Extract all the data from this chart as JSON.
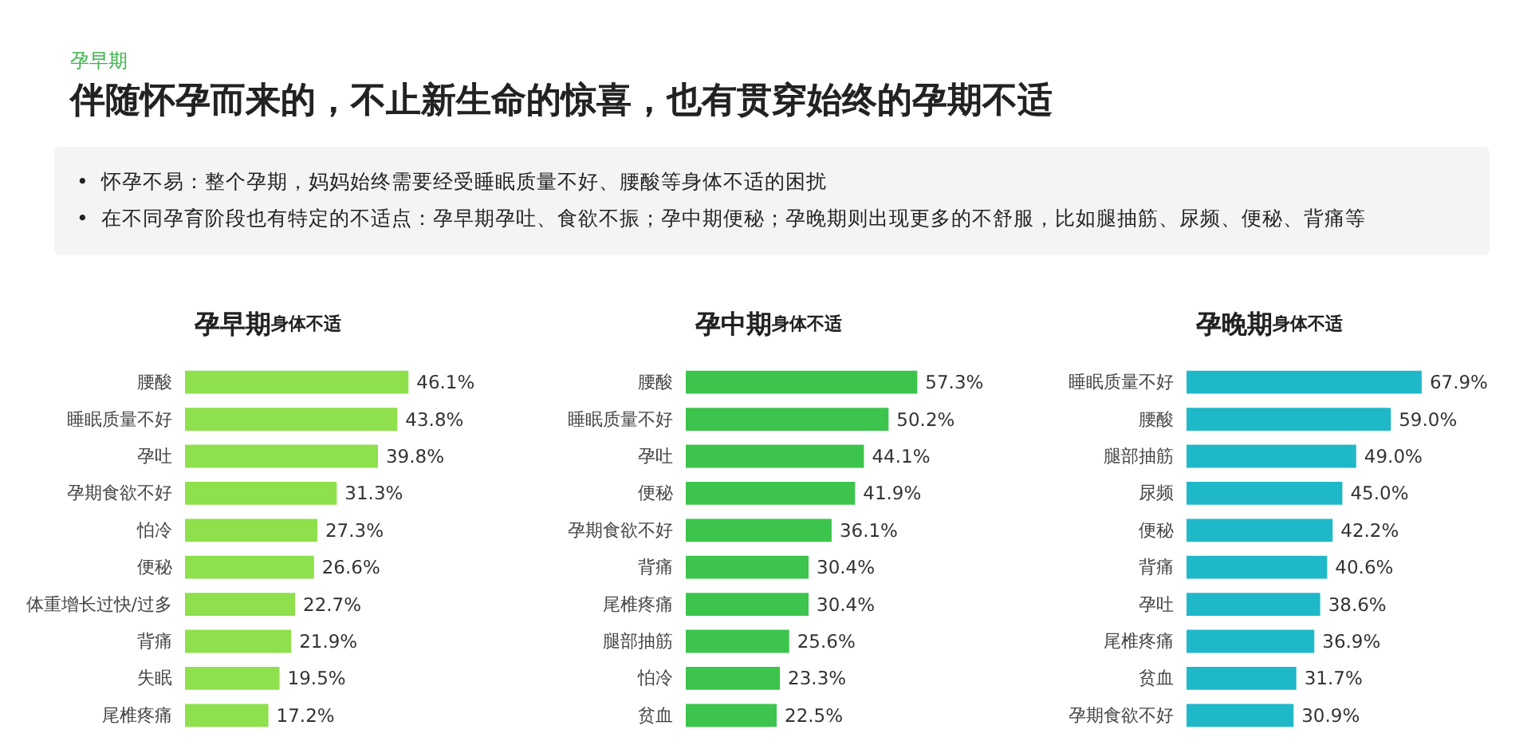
{
  "chart_data": [
    {
      "type": "other",
      "title": "伴随怀孕而来的，不止新生命的惊喜，也有贯穿始终的孕期不适",
      "subtitle": "孕早期",
      "annotations": [
        "•  怀孕不易：整个孕期，妈妈始终需要经受睡眠质量不好、腰酸等身体不适的困扰",
        "•  在不同孕育阶段也有特定的不适点：孕早期孕吐、食欲不振；孕中期便秘；孕晚期则出现更多的不舒服，比如腿抽筋、尿频、便秘、背痛等"
      ]
    },
    {
      "type": "bar",
      "orientation": "horizontal",
      "title": "孕早期",
      "subtitle": "身体不适",
      "categories": [
        "腰酸",
        "睡眠质量不好",
        "孕吐",
        "孕期食欲不好",
        "怕冷",
        "便秘",
        "体重增长过快/过多",
        "背痛",
        "失眠",
        "尾椎疼痛"
      ],
      "series": [
        {
          "color": "#8ee04c",
          "values": [
            46.1,
            43.8,
            39.8,
            31.3,
            27.3,
            26.6,
            22.7,
            21.9,
            19.5,
            17.2
          ],
          "value_labels": [
            "46.1%",
            "43.8%",
            "39.8%",
            "31.3%",
            "27.3%",
            "26.6%",
            "22.7%",
            "21.9%",
            "19.5%",
            "17.2%"
          ]
        }
      ]
    },
    {
      "type": "bar",
      "orientation": "horizontal",
      "title": "孕中期",
      "subtitle": "身体不适",
      "categories": [
        "腰酸",
        "睡眠质量不好",
        "孕吐",
        "便秘",
        "孕期食欲不好",
        "背痛",
        "尾椎疼痛",
        "腿部抽筋",
        "怕冷",
        "贫血"
      ],
      "series": [
        {
          "color": "#3cc44c",
          "values": [
            57.3,
            50.2,
            44.1,
            41.9,
            36.1,
            30.4,
            30.4,
            25.6,
            23.3,
            22.5
          ],
          "value_labels": [
            "57.3%",
            "50.2%",
            "44.1%",
            "41.9%",
            "36.1%",
            "30.4%",
            "30.4%",
            "25.6%",
            "23.3%",
            "22.5%"
          ]
        }
      ]
    },
    {
      "type": "bar",
      "orientation": "horizontal",
      "title": "孕晚期",
      "subtitle": "身体不适",
      "categories": [
        "睡眠质量不好",
        "腰酸",
        "腿部抽筋",
        "尿频",
        "便秘",
        "背痛",
        "孕吐",
        "尾椎疼痛",
        "贫血",
        "孕期食欲不好"
      ],
      "series": [
        {
          "color": "#1fb8c8",
          "values": [
            67.9,
            59.0,
            49.0,
            45.0,
            42.2,
            40.6,
            38.6,
            36.9,
            31.7,
            30.9
          ],
          "value_labels": [
            "67.9%",
            "59.0%",
            "49.0%",
            "45.0%",
            "42.2%",
            "40.6%",
            "38.6%",
            "36.9%",
            "31.7%",
            "30.9%"
          ]
        }
      ]
    }
  ]
}
